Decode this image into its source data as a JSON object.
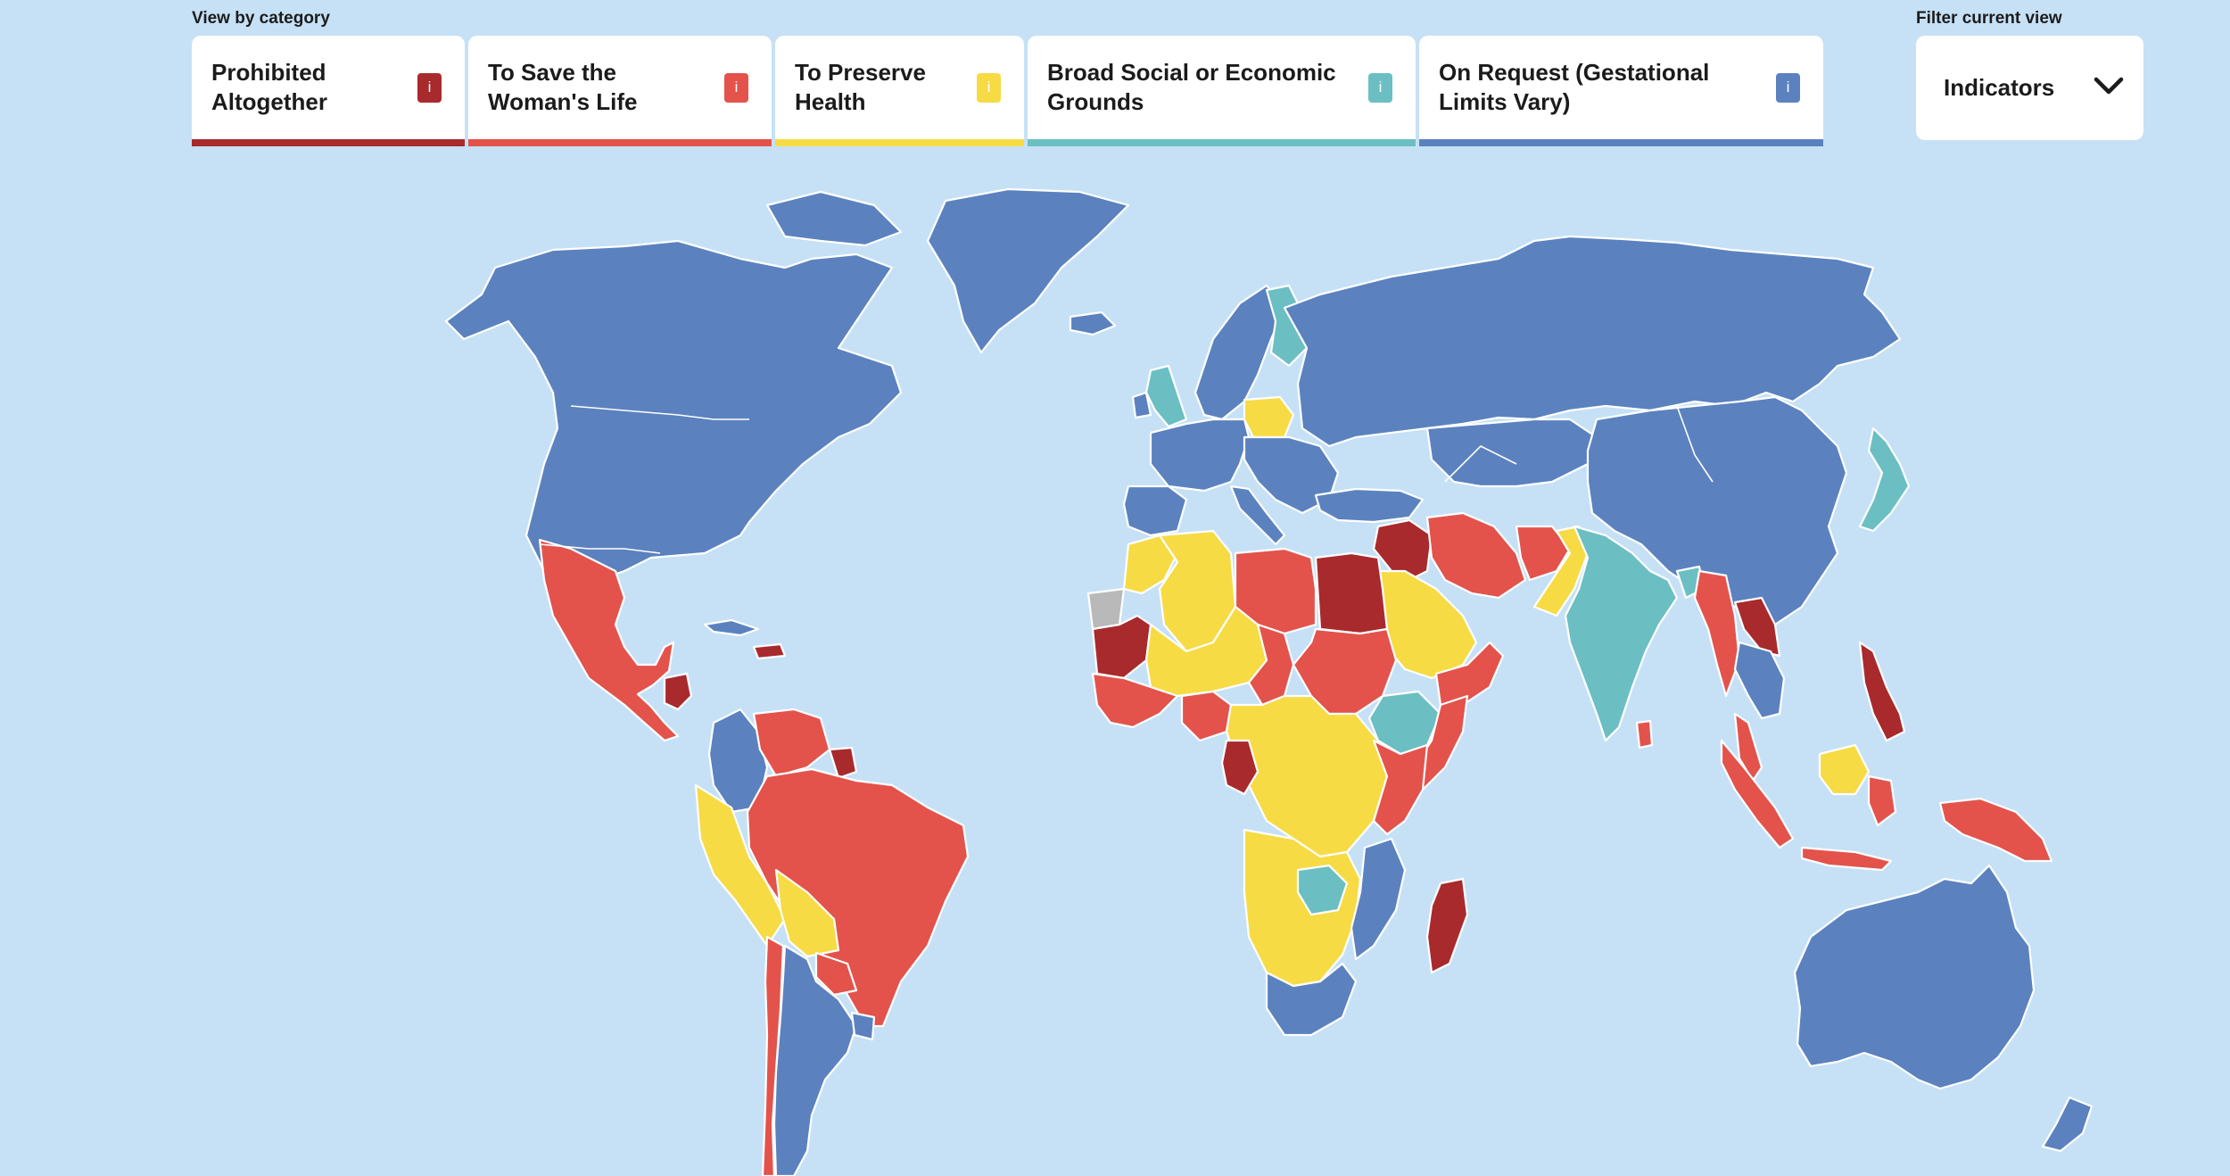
{
  "header": {
    "view_by_label": "View by category",
    "filter_label": "Filter current view"
  },
  "categories": [
    {
      "key": "prohibited",
      "label": "Prohibited\nAltogether",
      "info": "i",
      "color": "#a82a2d"
    },
    {
      "key": "life",
      "label": "To Save the\nWoman's Life",
      "info": "i",
      "color": "#e3534b"
    },
    {
      "key": "health",
      "label": "To Preserve\nHealth",
      "info": "i",
      "color": "#f6db45"
    },
    {
      "key": "socio",
      "label": "Broad Social or Economic\nGrounds",
      "info": "i",
      "color": "#6bbfc2"
    },
    {
      "key": "request",
      "label": "On Request (Gestational\nLimits Vary)",
      "info": "i",
      "color": "#5b82bf"
    }
  ],
  "filter": {
    "selected": "Indicators",
    "chevron_icon": "chevron-down-icon"
  },
  "map": {
    "ocean_color": "#c6e1f6",
    "no_data_color": "#b9b9b9",
    "border_color": "#ffffff"
  }
}
